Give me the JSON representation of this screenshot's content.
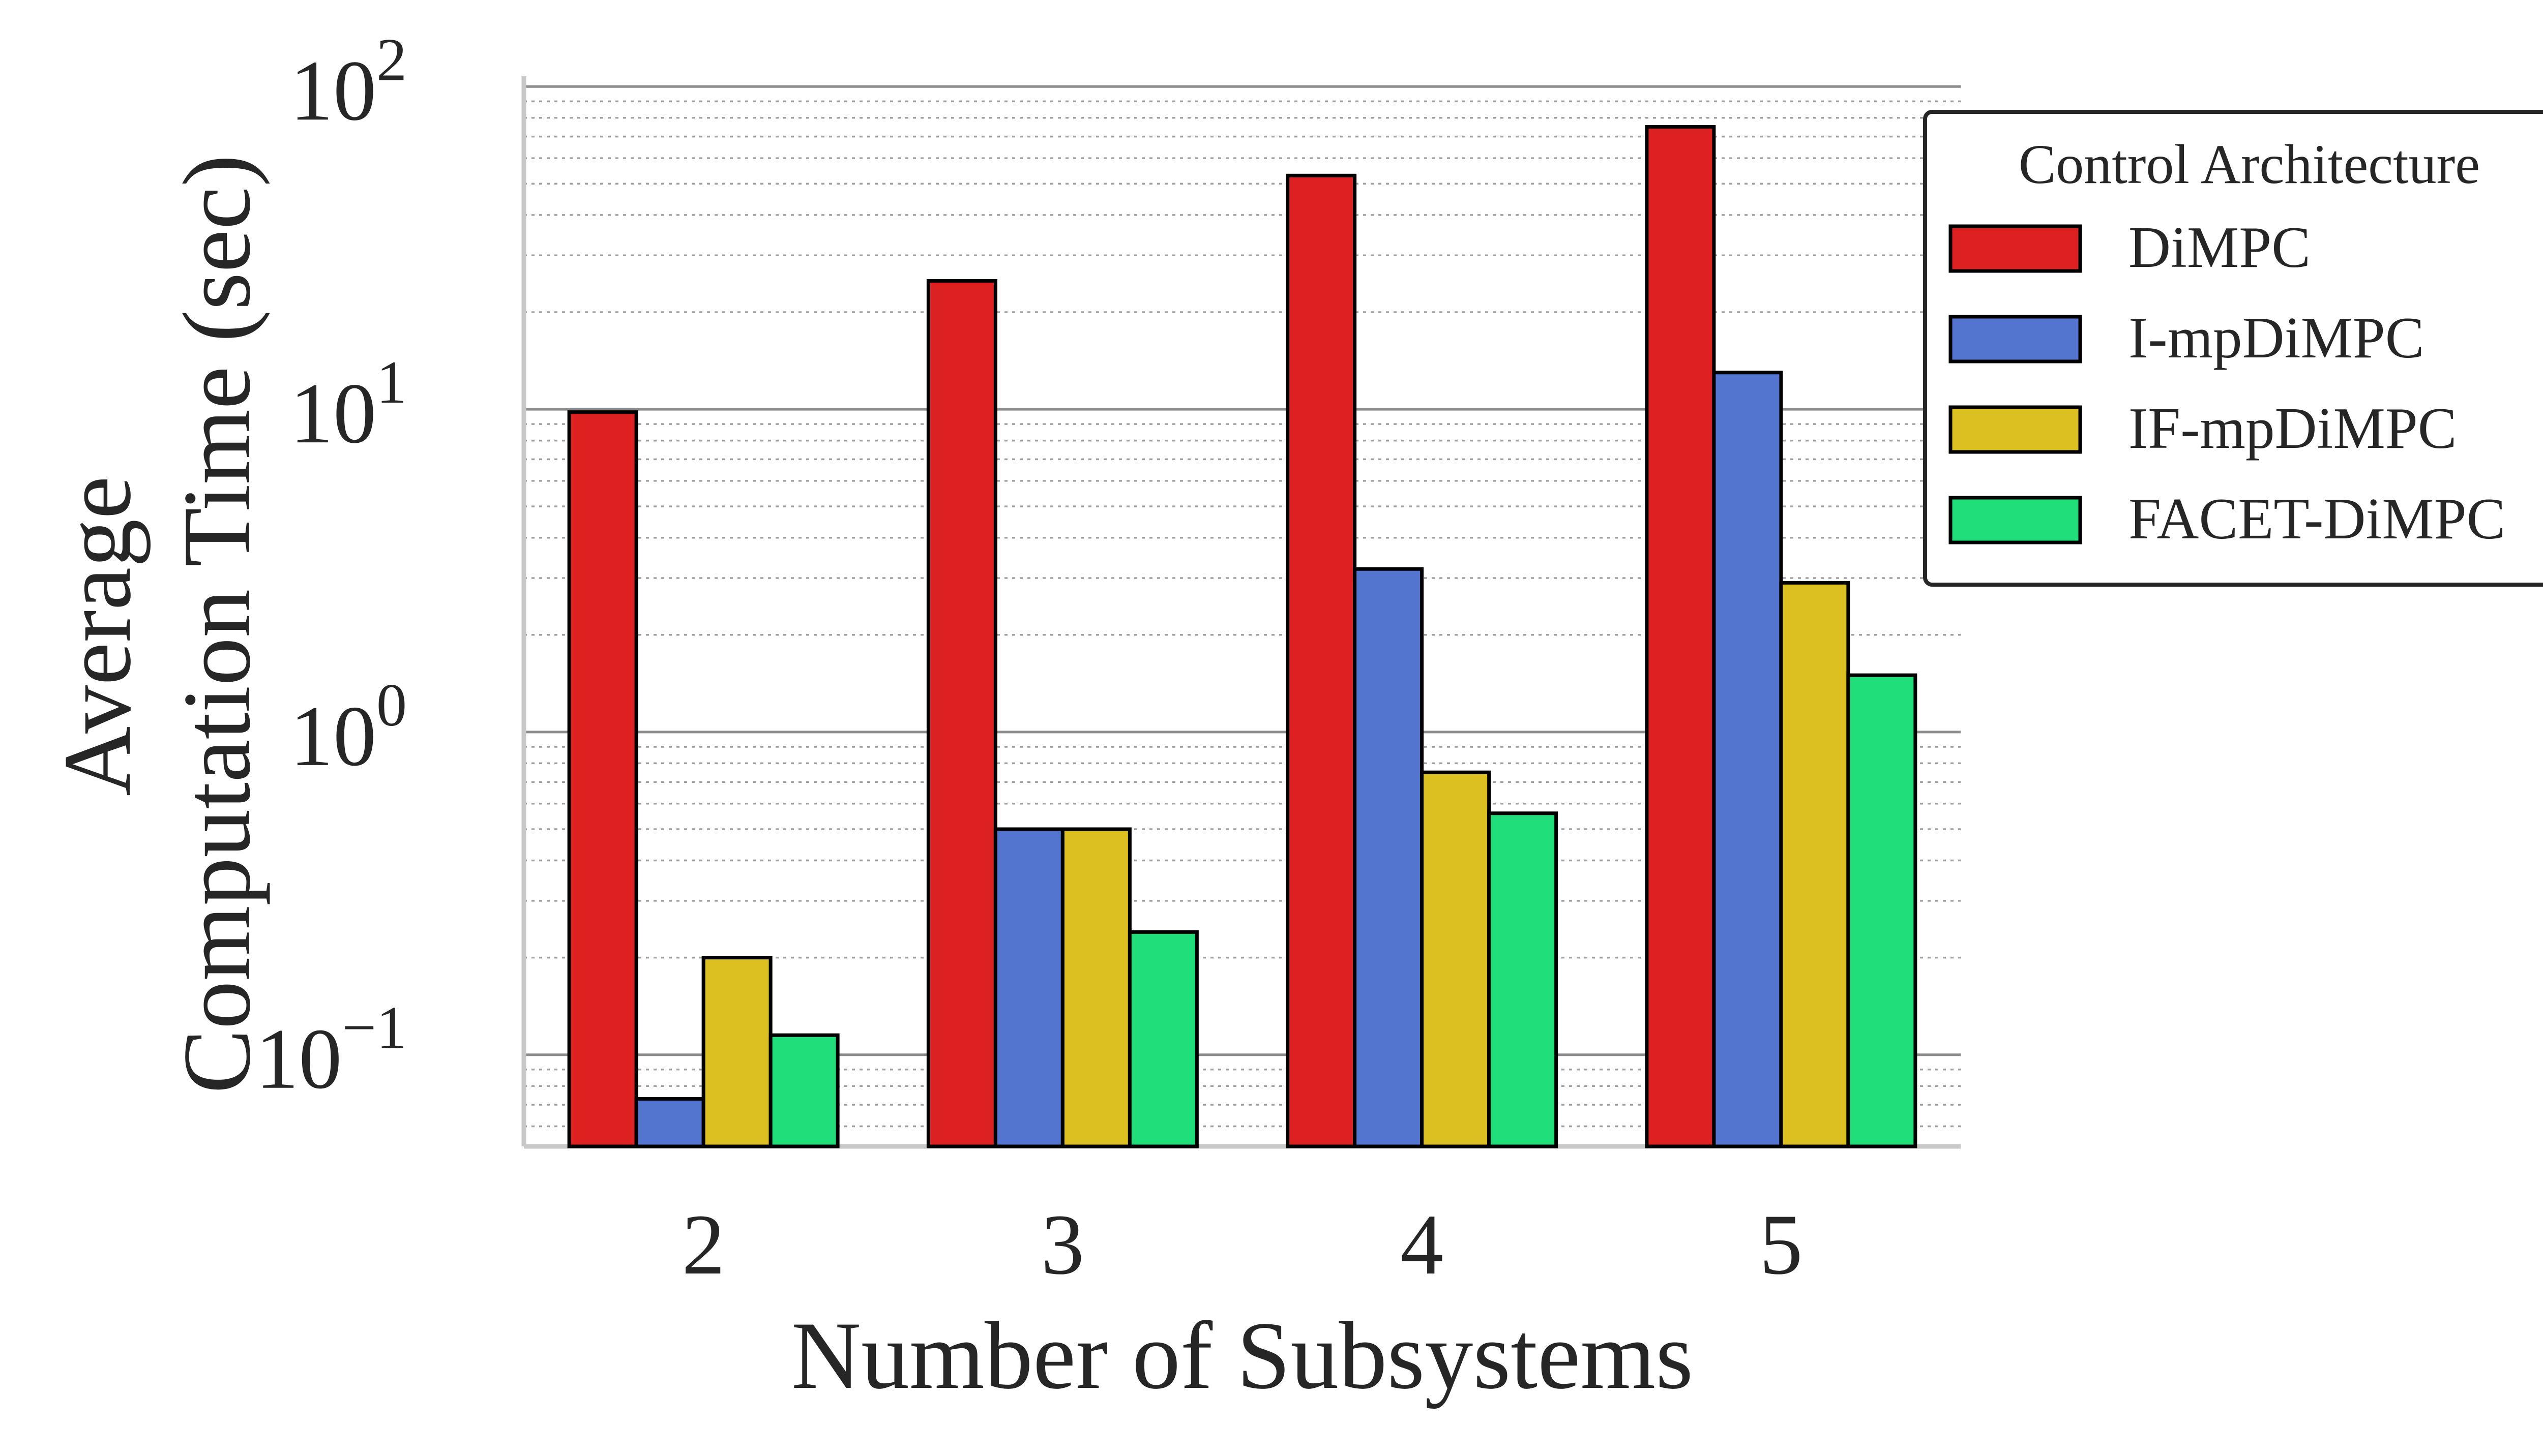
{
  "chart_data": {
    "type": "bar",
    "scale": "log",
    "categories": [
      "2",
      "3",
      "4",
      "5"
    ],
    "series": [
      {
        "name": "DiMPC",
        "color": "#dd2020",
        "values": [
          9.8,
          25,
          53,
          75
        ]
      },
      {
        "name": "I-mpDiMPC",
        "color": "#5374cf",
        "values": [
          0.073,
          0.5,
          3.2,
          13
        ]
      },
      {
        "name": "IF-mpDiMPC",
        "color": "#dcc021",
        "values": [
          0.2,
          0.5,
          0.75,
          2.9
        ]
      },
      {
        "name": "FACET-DiMPC",
        "color": "#20df7b",
        "values": [
          0.115,
          0.24,
          0.56,
          1.5
        ]
      }
    ],
    "xlabel": "Number of Subsystems",
    "ylabel_lines": [
      "Average",
      "Computation Time (sec)"
    ],
    "ylim": [
      0.052,
      120
    ],
    "yticks": [
      {
        "value": 0.1,
        "base": "10",
        "exp": "−1"
      },
      {
        "value": 1,
        "base": "10",
        "exp": "0"
      },
      {
        "value": 10,
        "base": "10",
        "exp": "1"
      },
      {
        "value": 100,
        "base": "10",
        "exp": "2"
      }
    ],
    "grid": "major solid, minor dotted",
    "legend": {
      "title": "Control Architecture",
      "placement": "outside-top-right"
    }
  }
}
